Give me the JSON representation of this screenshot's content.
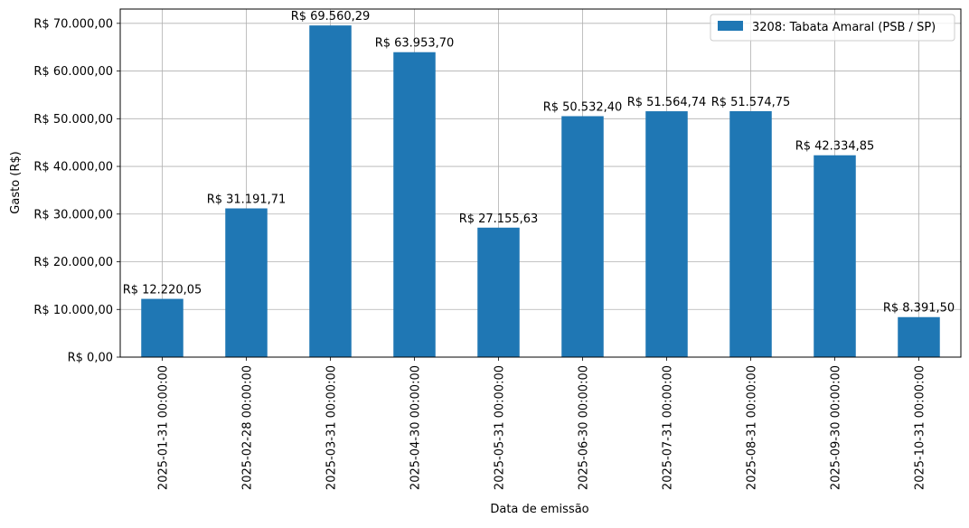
{
  "chart_data": {
    "type": "bar",
    "title": "",
    "xlabel": "Data de emissão",
    "ylabel": "Gasto (R$)",
    "categories": [
      "2025-01-31 00:00:00",
      "2025-02-28 00:00:00",
      "2025-03-31 00:00:00",
      "2025-04-30 00:00:00",
      "2025-05-31 00:00:00",
      "2025-06-30 00:00:00",
      "2025-07-31 00:00:00",
      "2025-08-31 00:00:00",
      "2025-09-30 00:00:00",
      "2025-10-31 00:00:00"
    ],
    "series": [
      {
        "name": "3208: Tabata Amaral (PSB / SP)",
        "color": "#1f77b4",
        "values": [
          12220.05,
          31191.71,
          69560.29,
          63953.7,
          27155.63,
          50532.4,
          51564.74,
          51574.75,
          42334.85,
          8391.5
        ],
        "data_labels": [
          "R$ 12.220,05",
          "R$ 31.191,71",
          "R$ 69.560,29",
          "R$ 63.953,70",
          "R$ 27.155,63",
          "R$ 50.532,40",
          "R$ 51.564,74",
          "R$ 51.574,75",
          "R$ 42.334,85",
          "R$ 8.391,50"
        ]
      }
    ],
    "ylim": [
      0,
      73000
    ],
    "yticks": [
      0,
      10000,
      20000,
      30000,
      40000,
      50000,
      60000,
      70000
    ],
    "ytick_labels": [
      "R$ 0,00",
      "R$ 10.000,00",
      "R$ 20.000,00",
      "R$ 30.000,00",
      "R$ 40.000,00",
      "R$ 50.000,00",
      "R$ 60.000,00",
      "R$ 70.000,00"
    ],
    "grid": true,
    "legend_position": "top-right"
  }
}
